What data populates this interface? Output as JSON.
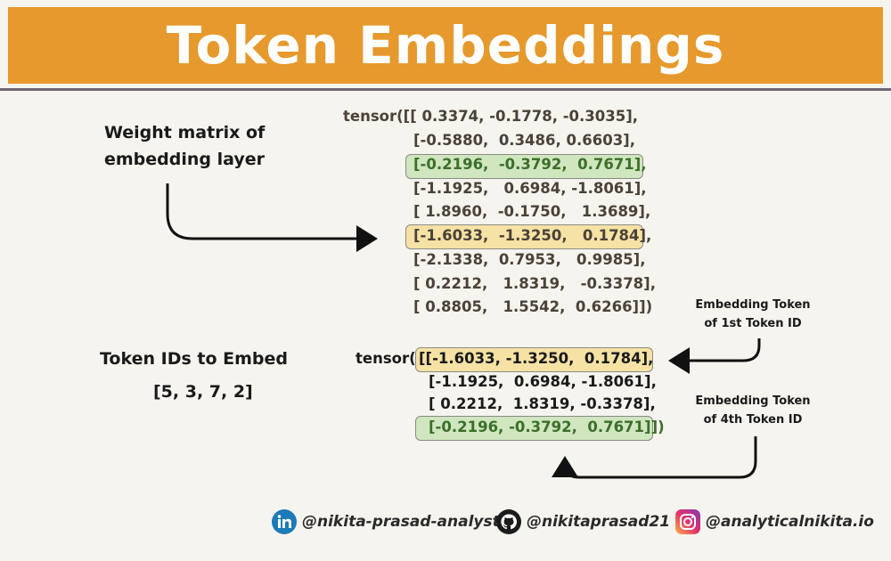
{
  "title": "Token Embeddings",
  "colors": {
    "title_bg": "#e6992d",
    "green_highlight": "#cfe6bf",
    "yellow_highlight": "#f5e2a4",
    "green_text": "#3d6e2a"
  },
  "weight_label": [
    "Weight matrix of",
    "embedding layer"
  ],
  "weight_matrix": [
    "tensor([[ 0.3374, -0.1778, -0.3035],",
    "[-0.5880,  0.3486, 0.6603],",
    "[-0.2196,  -0.3792,  0.7671],",
    "[-1.1925,   0.6984, -1.8061],",
    "[ 1.8960,  -0.1750,   1.3689],",
    "[-1.6033,  -1.3250,   0.1784],",
    "[-2.1338,  0.7953,   0.9985],",
    "[ 0.2212,   1.8319,   -0.3378],",
    "[ 0.8805,   1.5542,  0.6266]])"
  ],
  "token_ids_label": "Token IDs to Embed",
  "token_ids": "[5, 3, 7, 2]",
  "output_prefix": "tensor(",
  "output_rows": [
    "[[-1.6033, -1.3250,  0.1784],",
    "[-1.1925,  0.6984, -1.8061],",
    "[ 0.2212,  1.8319, -0.3378],",
    "[-0.2196, -0.3792,  0.7671]])"
  ],
  "note_first": [
    "Embedding Token",
    "of 1st Token ID"
  ],
  "note_fourth": [
    "Embedding Token",
    "of 4th Token ID"
  ],
  "socials": [
    {
      "icon": "linkedin-icon",
      "handle": "@nikita-prasad-analyst"
    },
    {
      "icon": "github-icon",
      "handle": "@nikitaprasad21"
    },
    {
      "icon": "instagram-icon",
      "handle": "@analyticalnikita.io"
    }
  ]
}
